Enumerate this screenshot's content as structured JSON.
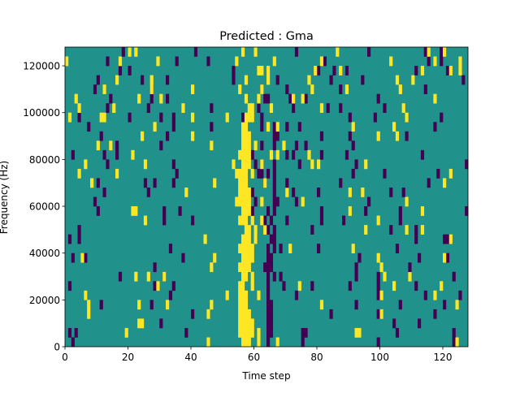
{
  "chart_data": {
    "type": "heatmap",
    "title": "Predicted : Gma",
    "xlabel": "Time step",
    "ylabel": "Frequency (Hz)",
    "xlim": [
      0,
      128
    ],
    "ylim": [
      0,
      128000
    ],
    "n_cols": 128,
    "n_rows": 32,
    "row_height_hz": 4000,
    "xticks": [
      0,
      20,
      40,
      60,
      80,
      100,
      120
    ],
    "yticks": [
      0,
      20000,
      40000,
      60000,
      80000,
      100000,
      120000
    ],
    "xtick_labels": [
      "0",
      "20",
      "40",
      "60",
      "80",
      "100",
      "120"
    ],
    "ytick_labels": [
      "0",
      "20000",
      "40000",
      "60000",
      "80000",
      "100000",
      "120000"
    ],
    "colormap": {
      "low": "#440154",
      "background": "#21918c",
      "high": "#fde725"
    },
    "note_rows_bottom_to_top": "p = low-value columns, y = high-value columns; all other cells background",
    "rows": [
      {
        "p": [
          2,
          64,
          75,
          99,
          123
        ],
        "y": [
          45,
          56,
          57,
          58,
          61,
          67,
          124
        ]
      },
      {
        "p": [
          1,
          3,
          38,
          64,
          65,
          75,
          76,
          105,
          123
        ],
        "y": [
          19,
          55,
          56,
          57,
          58,
          59,
          61,
          92,
          93
        ]
      },
      {
        "p": [
          30,
          64,
          65,
          104,
          112
        ],
        "y": [
          23,
          24,
          55,
          56,
          57,
          58,
          59
        ]
      },
      {
        "p": [
          40,
          64,
          65,
          84,
          99,
          117
        ],
        "y": [
          7,
          45,
          55,
          56,
          57,
          58,
          100
        ]
      },
      {
        "p": [
          11,
          27,
          64,
          65,
          92,
          106,
          120
        ],
        "y": [
          7,
          23,
          32,
          46,
          55,
          56,
          57,
          81,
          124
        ]
      },
      {
        "p": [
          6,
          33,
          64,
          73,
          99,
          114,
          125
        ],
        "y": [
          6,
          51,
          55,
          56,
          57,
          61,
          100,
          117
        ]
      },
      {
        "p": [
          1,
          28,
          34,
          64,
          69,
          78,
          90,
          99,
          111
        ],
        "y": [
          29,
          55,
          56,
          59,
          74,
          104,
          119
        ]
      },
      {
        "p": [
          17,
          31,
          64,
          66,
          68,
          92,
          99,
          123
        ],
        "y": [
          22,
          26,
          31,
          56,
          57,
          59,
          101,
          109
        ]
      },
      {
        "p": [
          28,
          63,
          64,
          65,
          92,
          109
        ],
        "y": [
          46,
          55,
          56,
          57,
          58,
          100
        ]
      },
      {
        "p": [
          2,
          6,
          37,
          64,
          65,
          93,
          112,
          121
        ],
        "y": [
          5,
          47,
          56,
          57,
          58,
          59,
          99,
          120
        ]
      },
      {
        "p": [
          33,
          64,
          66,
          68,
          80,
          105
        ],
        "y": [
          55,
          56,
          57,
          58,
          59,
          71,
          91
        ]
      },
      {
        "p": [
          1,
          4,
          60,
          65,
          66,
          111,
          120,
          121
        ],
        "y": [
          44,
          56,
          57,
          58,
          60,
          122
        ]
      },
      {
        "p": [
          4,
          64,
          66,
          78,
          103,
          111
        ],
        "y": [
          57,
          58,
          60,
          63,
          95,
          108,
          113
        ]
      },
      {
        "p": [
          31,
          40,
          63,
          65,
          70,
          81,
          88,
          106
        ],
        "y": [
          25,
          55,
          56,
          57,
          59,
          62,
          99
        ]
      },
      {
        "p": [
          10,
          31,
          36,
          59,
          64,
          66,
          81,
          95,
          106,
          127
        ],
        "y": [
          21,
          22,
          56,
          57,
          58,
          90,
          113
        ]
      },
      {
        "p": [
          9,
          60,
          66,
          67,
          73,
          96
        ],
        "y": [
          54,
          55,
          56,
          57,
          58,
          62,
          75,
          108
        ]
      },
      {
        "p": [
          12,
          26,
          59,
          66,
          72,
          80,
          103,
          107
        ],
        "y": [
          38,
          55,
          56,
          57,
          58,
          70,
          90,
          94
        ]
      },
      {
        "p": [
          10,
          25,
          28,
          34,
          63,
          66,
          70,
          87,
          115
        ],
        "y": [
          8,
          47,
          55,
          56,
          57,
          63,
          120
        ]
      },
      {
        "p": [
          35,
          61,
          62,
          64,
          66,
          91,
          101,
          118
        ],
        "y": [
          4,
          16,
          54,
          55,
          56,
          57,
          59,
          122
        ]
      },
      {
        "p": [
          13,
          34,
          60,
          62,
          66,
          74,
          92,
          127
        ],
        "y": [
          6,
          25,
          53,
          56,
          57,
          58,
          62,
          78,
          80,
          95
        ]
      },
      {
        "p": [
          2,
          12,
          16,
          59,
          70,
          72,
          81,
          89,
          113
        ],
        "y": [
          21,
          55,
          56,
          57,
          58,
          65,
          67,
          77
        ]
      },
      {
        "p": [
          16,
          30,
          62,
          66,
          73,
          76,
          91
        ],
        "y": [
          10,
          14,
          46,
          56,
          57,
          58,
          60,
          69
        ]
      },
      {
        "p": [
          11,
          32,
          66,
          67,
          81,
          90,
          108
        ],
        "y": [
          24,
          40,
          56,
          57,
          58,
          99,
          105
        ]
      },
      {
        "p": [
          7,
          34,
          46,
          62,
          66,
          70,
          74,
          117
        ],
        "y": [
          28,
          56,
          57,
          64,
          67,
          91,
          104
        ]
      },
      {
        "p": [
          4,
          20,
          30,
          34,
          56,
          62,
          90,
          98,
          119
        ],
        "y": [
          1,
          11,
          12,
          40,
          51,
          57,
          58,
          59,
          108
        ]
      },
      {
        "p": [
          13,
          26,
          46,
          61,
          72,
          83,
          87,
          101
        ],
        "y": [
          4,
          15,
          37,
          58,
          59,
          65,
          81,
          107
        ]
      },
      {
        "p": [
          14,
          27,
          32,
          63,
          64,
          71,
          76,
          99
        ],
        "y": [
          3,
          23,
          30,
          57,
          61,
          72,
          75,
          117
        ]
      },
      {
        "p": [
          9,
          27,
          62,
          70,
          87,
          114
        ],
        "y": [
          12,
          27,
          40,
          55,
          62,
          78,
          89,
          106
        ]
      },
      {
        "p": [
          10,
          24,
          32,
          53,
          67,
          84,
          94,
          126
        ],
        "y": [
          16,
          27,
          57,
          64,
          77,
          105,
          110
        ]
      },
      {
        "p": [
          17,
          20,
          53,
          80,
          85,
          89,
          111,
          121
        ],
        "y": [
          61,
          62,
          64,
          79,
          87,
          113,
          122,
          125
        ]
      },
      {
        "p": [
          13,
          35,
          45,
          82,
          115,
          119
        ],
        "y": [
          0,
          17,
          29,
          54,
          66,
          81,
          103,
          117,
          125
        ]
      },
      {
        "p": [
          18,
          41,
          73,
          96,
          114,
          119
        ],
        "y": [
          20,
          22,
          56,
          60,
          86,
          115,
          120
        ]
      }
    ]
  }
}
